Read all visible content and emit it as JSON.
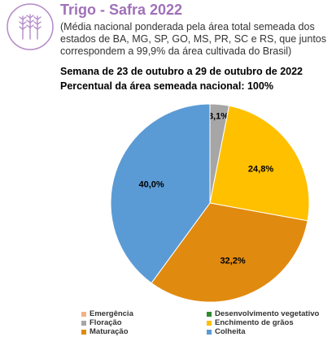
{
  "header": {
    "title": "Trigo - Safra 2022",
    "subtitle": "(Média nacional ponderada pela área total semeada dos estados de BA, MG, SP, GO, MS, PR, SC e RS, que juntos correspondem a 99,9% da área cultivada do Brasil)",
    "week": "Semana de 23 de outubro a 29 de outubro de 2022",
    "area_pct": "Percentual da área semeada nacional: 100%",
    "icon": "wheat-icon"
  },
  "colors": {
    "brand": "#a070b8",
    "emergencia": "#f4b183",
    "desenvolvimento": "#2e8b2e",
    "floracao": "#a6a6a6",
    "enchimento": "#ffc000",
    "maturacao": "#e08a10",
    "colheita": "#5b9bd5"
  },
  "chart_data": {
    "type": "pie",
    "slices": [
      {
        "name": "Emergência",
        "value": 0.0,
        "label": "",
        "color": "#f4b183"
      },
      {
        "name": "Desenvolvimento vegetativo",
        "value": 0.0,
        "label": "",
        "color": "#2e8b2e"
      },
      {
        "name": "Floração",
        "value": 3.1,
        "label": "3,1%",
        "color": "#a6a6a6"
      },
      {
        "name": "Enchimento de grãos",
        "value": 24.8,
        "label": "24,8%",
        "color": "#ffc000"
      },
      {
        "name": "Maturação",
        "value": 32.2,
        "label": "32,2%",
        "color": "#e08a10"
      },
      {
        "name": "Colheita",
        "value": 40.0,
        "label": "40,0%",
        "color": "#5b9bd5"
      }
    ],
    "legend": [
      "Emergência",
      "Desenvolvimento vegetativo",
      "Floração",
      "Enchimento de grãos",
      "Maturação",
      "Colheita"
    ],
    "legend_position": "bottom"
  }
}
